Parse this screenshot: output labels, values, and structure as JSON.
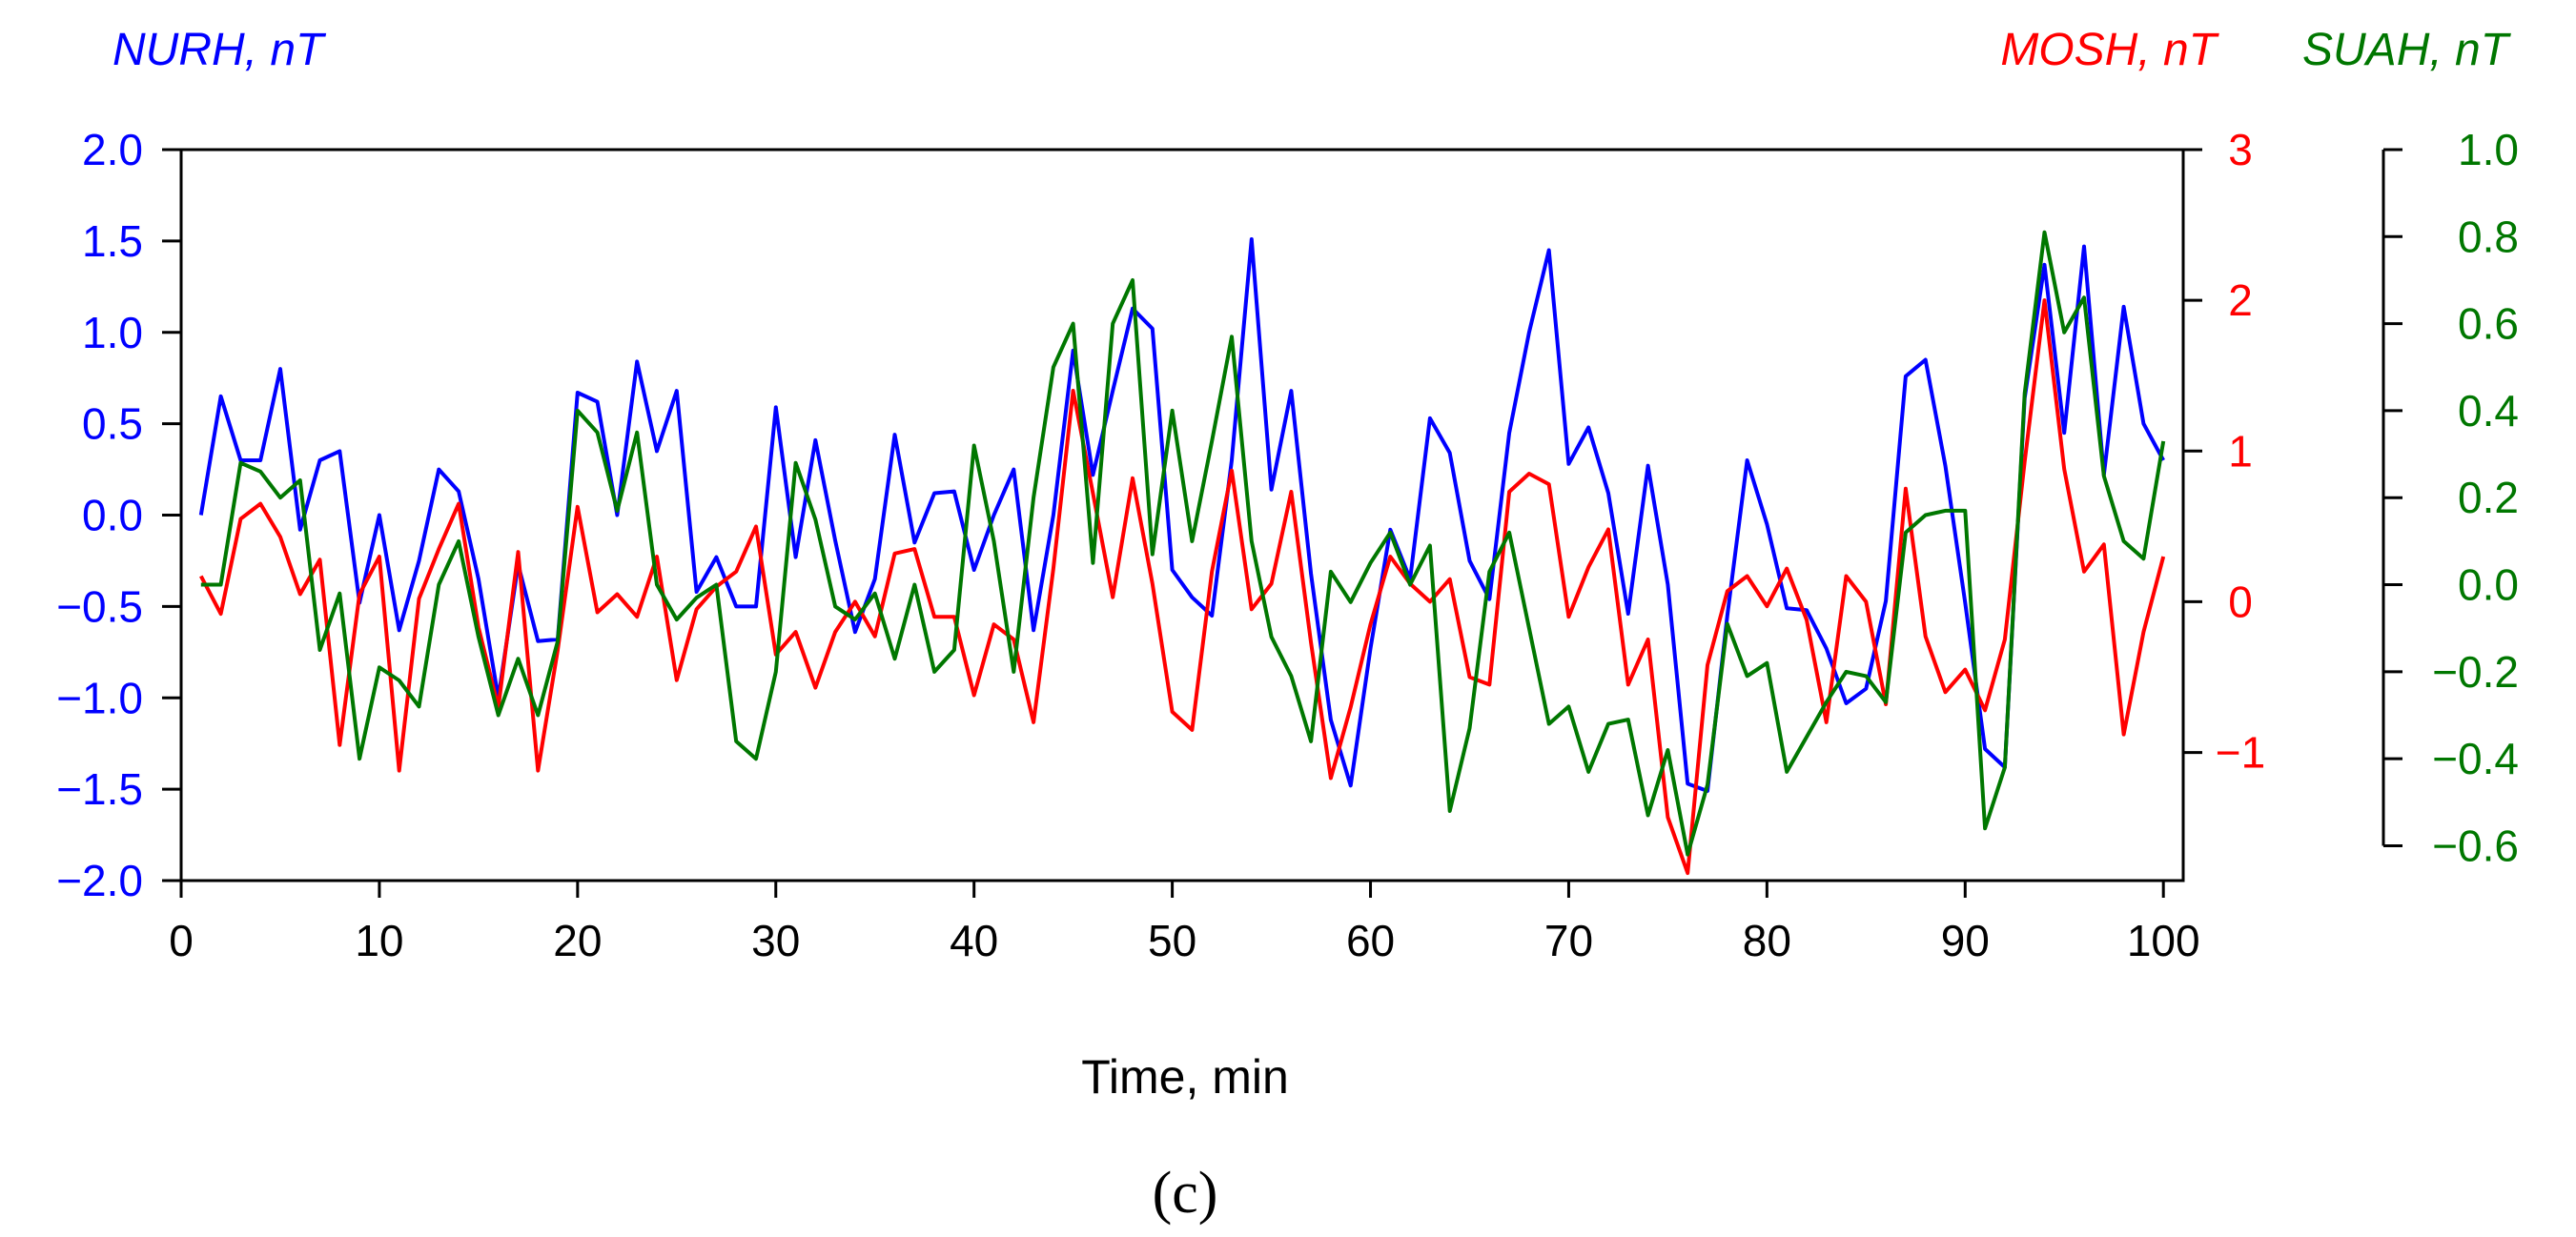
{
  "chart_data": {
    "type": "line",
    "panel_label": "(c)",
    "xlabel": "Time, min",
    "xlim": [
      0,
      101
    ],
    "xticks": [
      0,
      10,
      20,
      30,
      40,
      50,
      60,
      70,
      80,
      90,
      100
    ],
    "xtick_labels": [
      "0",
      "10",
      "20",
      "30",
      "40",
      "50",
      "60",
      "70",
      "80",
      "90",
      "100"
    ],
    "axes": [
      {
        "id": "nurh",
        "title": "NURH, nT",
        "color": "#0000ff",
        "ylim": [
          -2.0,
          2.0
        ],
        "ticks": [
          -2.0,
          -1.5,
          -1.0,
          -0.5,
          0.0,
          0.5,
          1.0,
          1.5,
          2.0
        ],
        "tick_labels": [
          "−2.0",
          "−1.5",
          "−1.0",
          "−0.5",
          "0.0",
          "0.5",
          "1.0",
          "1.5",
          "2.0"
        ]
      },
      {
        "id": "mosh",
        "title": "MOSH, nT",
        "color": "#ff0000",
        "ylim": [
          -1.85,
          3.0
        ],
        "ticks": [
          -1,
          0,
          1,
          2,
          3
        ],
        "tick_labels": [
          "−1",
          "0",
          "1",
          "2",
          "3"
        ]
      },
      {
        "id": "suah",
        "title": "SUAH, nT",
        "color": "#007700",
        "ylim": [
          -0.68,
          1.0
        ],
        "ticks": [
          -0.6,
          -0.4,
          -0.2,
          0.0,
          0.2,
          0.4,
          0.6,
          0.8,
          1.0
        ],
        "tick_labels": [
          "−0.6",
          "−0.4",
          "−0.2",
          "0.0",
          "0.2",
          "0.4",
          "0.6",
          "0.8",
          "1.0"
        ]
      }
    ],
    "series": [
      {
        "name": "NURH",
        "axis": "nurh",
        "color": "#0000ff",
        "x_start": 1,
        "values": [
          0.0,
          0.65,
          0.3,
          0.3,
          0.8,
          -0.08,
          0.3,
          0.35,
          -0.48,
          0.0,
          -0.63,
          -0.25,
          0.25,
          0.13,
          -0.35,
          -1.0,
          -0.27,
          -0.69,
          -0.68,
          0.67,
          0.62,
          0.0,
          0.84,
          0.35,
          0.68,
          -0.42,
          -0.23,
          -0.5,
          -0.5,
          0.59,
          -0.23,
          0.41,
          -0.14,
          -0.64,
          -0.35,
          0.44,
          -0.15,
          0.12,
          0.13,
          -0.3,
          0.0,
          0.25,
          -0.63,
          0.0,
          0.9,
          0.22,
          0.68,
          1.13,
          1.02,
          -0.3,
          -0.45,
          -0.55,
          0.3,
          1.51,
          0.14,
          0.68,
          -0.32,
          -1.12,
          -1.48,
          -0.73,
          -0.08,
          -0.35,
          0.53,
          0.34,
          -0.25,
          -0.46,
          0.45,
          1.0,
          1.45,
          0.28,
          0.48,
          0.12,
          -0.54,
          0.27,
          -0.38,
          -1.47,
          -1.51,
          -0.55,
          0.3,
          -0.05,
          -0.51,
          -0.52,
          -0.73,
          -1.03,
          -0.95,
          -0.47,
          0.76,
          0.85,
          0.27,
          -0.48,
          -1.28,
          -1.38,
          0.64,
          1.37,
          0.45,
          1.47,
          0.22,
          1.14,
          0.5,
          0.3
        ]
      },
      {
        "name": "MOSH",
        "axis": "mosh",
        "color": "#ff0000",
        "x_start": 1,
        "values": [
          0.17,
          -0.08,
          0.55,
          0.65,
          0.43,
          0.05,
          0.28,
          -0.95,
          0.05,
          0.3,
          -1.12,
          0.02,
          0.35,
          0.65,
          -0.17,
          -0.7,
          0.33,
          -1.12,
          -0.32,
          0.63,
          -0.07,
          0.05,
          -0.1,
          0.3,
          -0.52,
          -0.05,
          0.1,
          0.2,
          0.5,
          -0.35,
          -0.2,
          -0.57,
          -0.2,
          0.0,
          -0.23,
          0.32,
          0.35,
          -0.1,
          -0.1,
          -0.62,
          -0.15,
          -0.25,
          -0.8,
          0.22,
          1.4,
          0.72,
          0.03,
          0.82,
          0.12,
          -0.73,
          -0.85,
          0.2,
          0.87,
          -0.05,
          0.12,
          0.73,
          -0.27,
          -1.17,
          -0.7,
          -0.15,
          0.3,
          0.12,
          0.0,
          0.15,
          -0.5,
          -0.55,
          0.73,
          0.85,
          0.78,
          -0.1,
          0.23,
          0.48,
          -0.55,
          -0.25,
          -1.43,
          -1.8,
          -0.42,
          0.07,
          0.17,
          -0.03,
          0.22,
          -0.12,
          -0.8,
          0.17,
          0.0,
          -0.68,
          0.75,
          -0.23,
          -0.6,
          -0.45,
          -0.72,
          -0.25,
          0.93,
          2.0,
          0.88,
          0.2,
          0.38,
          -0.88,
          -0.2,
          0.3
        ]
      },
      {
        "name": "SUAH",
        "axis": "suah",
        "color": "#007700",
        "x_start": 1,
        "values": [
          0.0,
          0.0,
          0.28,
          0.26,
          0.2,
          0.24,
          -0.15,
          -0.02,
          -0.4,
          -0.19,
          -0.22,
          -0.28,
          0.0,
          0.1,
          -0.12,
          -0.3,
          -0.17,
          -0.3,
          -0.13,
          0.4,
          0.35,
          0.17,
          0.35,
          0.0,
          -0.08,
          -0.03,
          0.0,
          -0.36,
          -0.4,
          -0.2,
          0.28,
          0.15,
          -0.05,
          -0.08,
          -0.02,
          -0.17,
          0.0,
          -0.2,
          -0.15,
          0.32,
          0.1,
          -0.2,
          0.2,
          0.5,
          0.6,
          0.05,
          0.6,
          0.7,
          0.07,
          0.4,
          0.1,
          0.33,
          0.57,
          0.1,
          -0.12,
          -0.21,
          -0.36,
          0.03,
          -0.04,
          0.05,
          0.12,
          0.0,
          0.09,
          -0.52,
          -0.33,
          0.03,
          0.12,
          -0.1,
          -0.32,
          -0.28,
          -0.43,
          -0.32,
          -0.31,
          -0.53,
          -0.38,
          -0.62,
          -0.46,
          -0.09,
          -0.21,
          -0.18,
          -0.43,
          -0.35,
          -0.27,
          -0.2,
          -0.21,
          -0.27,
          0.12,
          0.16,
          0.17,
          0.17,
          -0.56,
          -0.42,
          0.44,
          0.81,
          0.58,
          0.66,
          0.25,
          0.1,
          0.06,
          0.33
        ]
      }
    ]
  }
}
